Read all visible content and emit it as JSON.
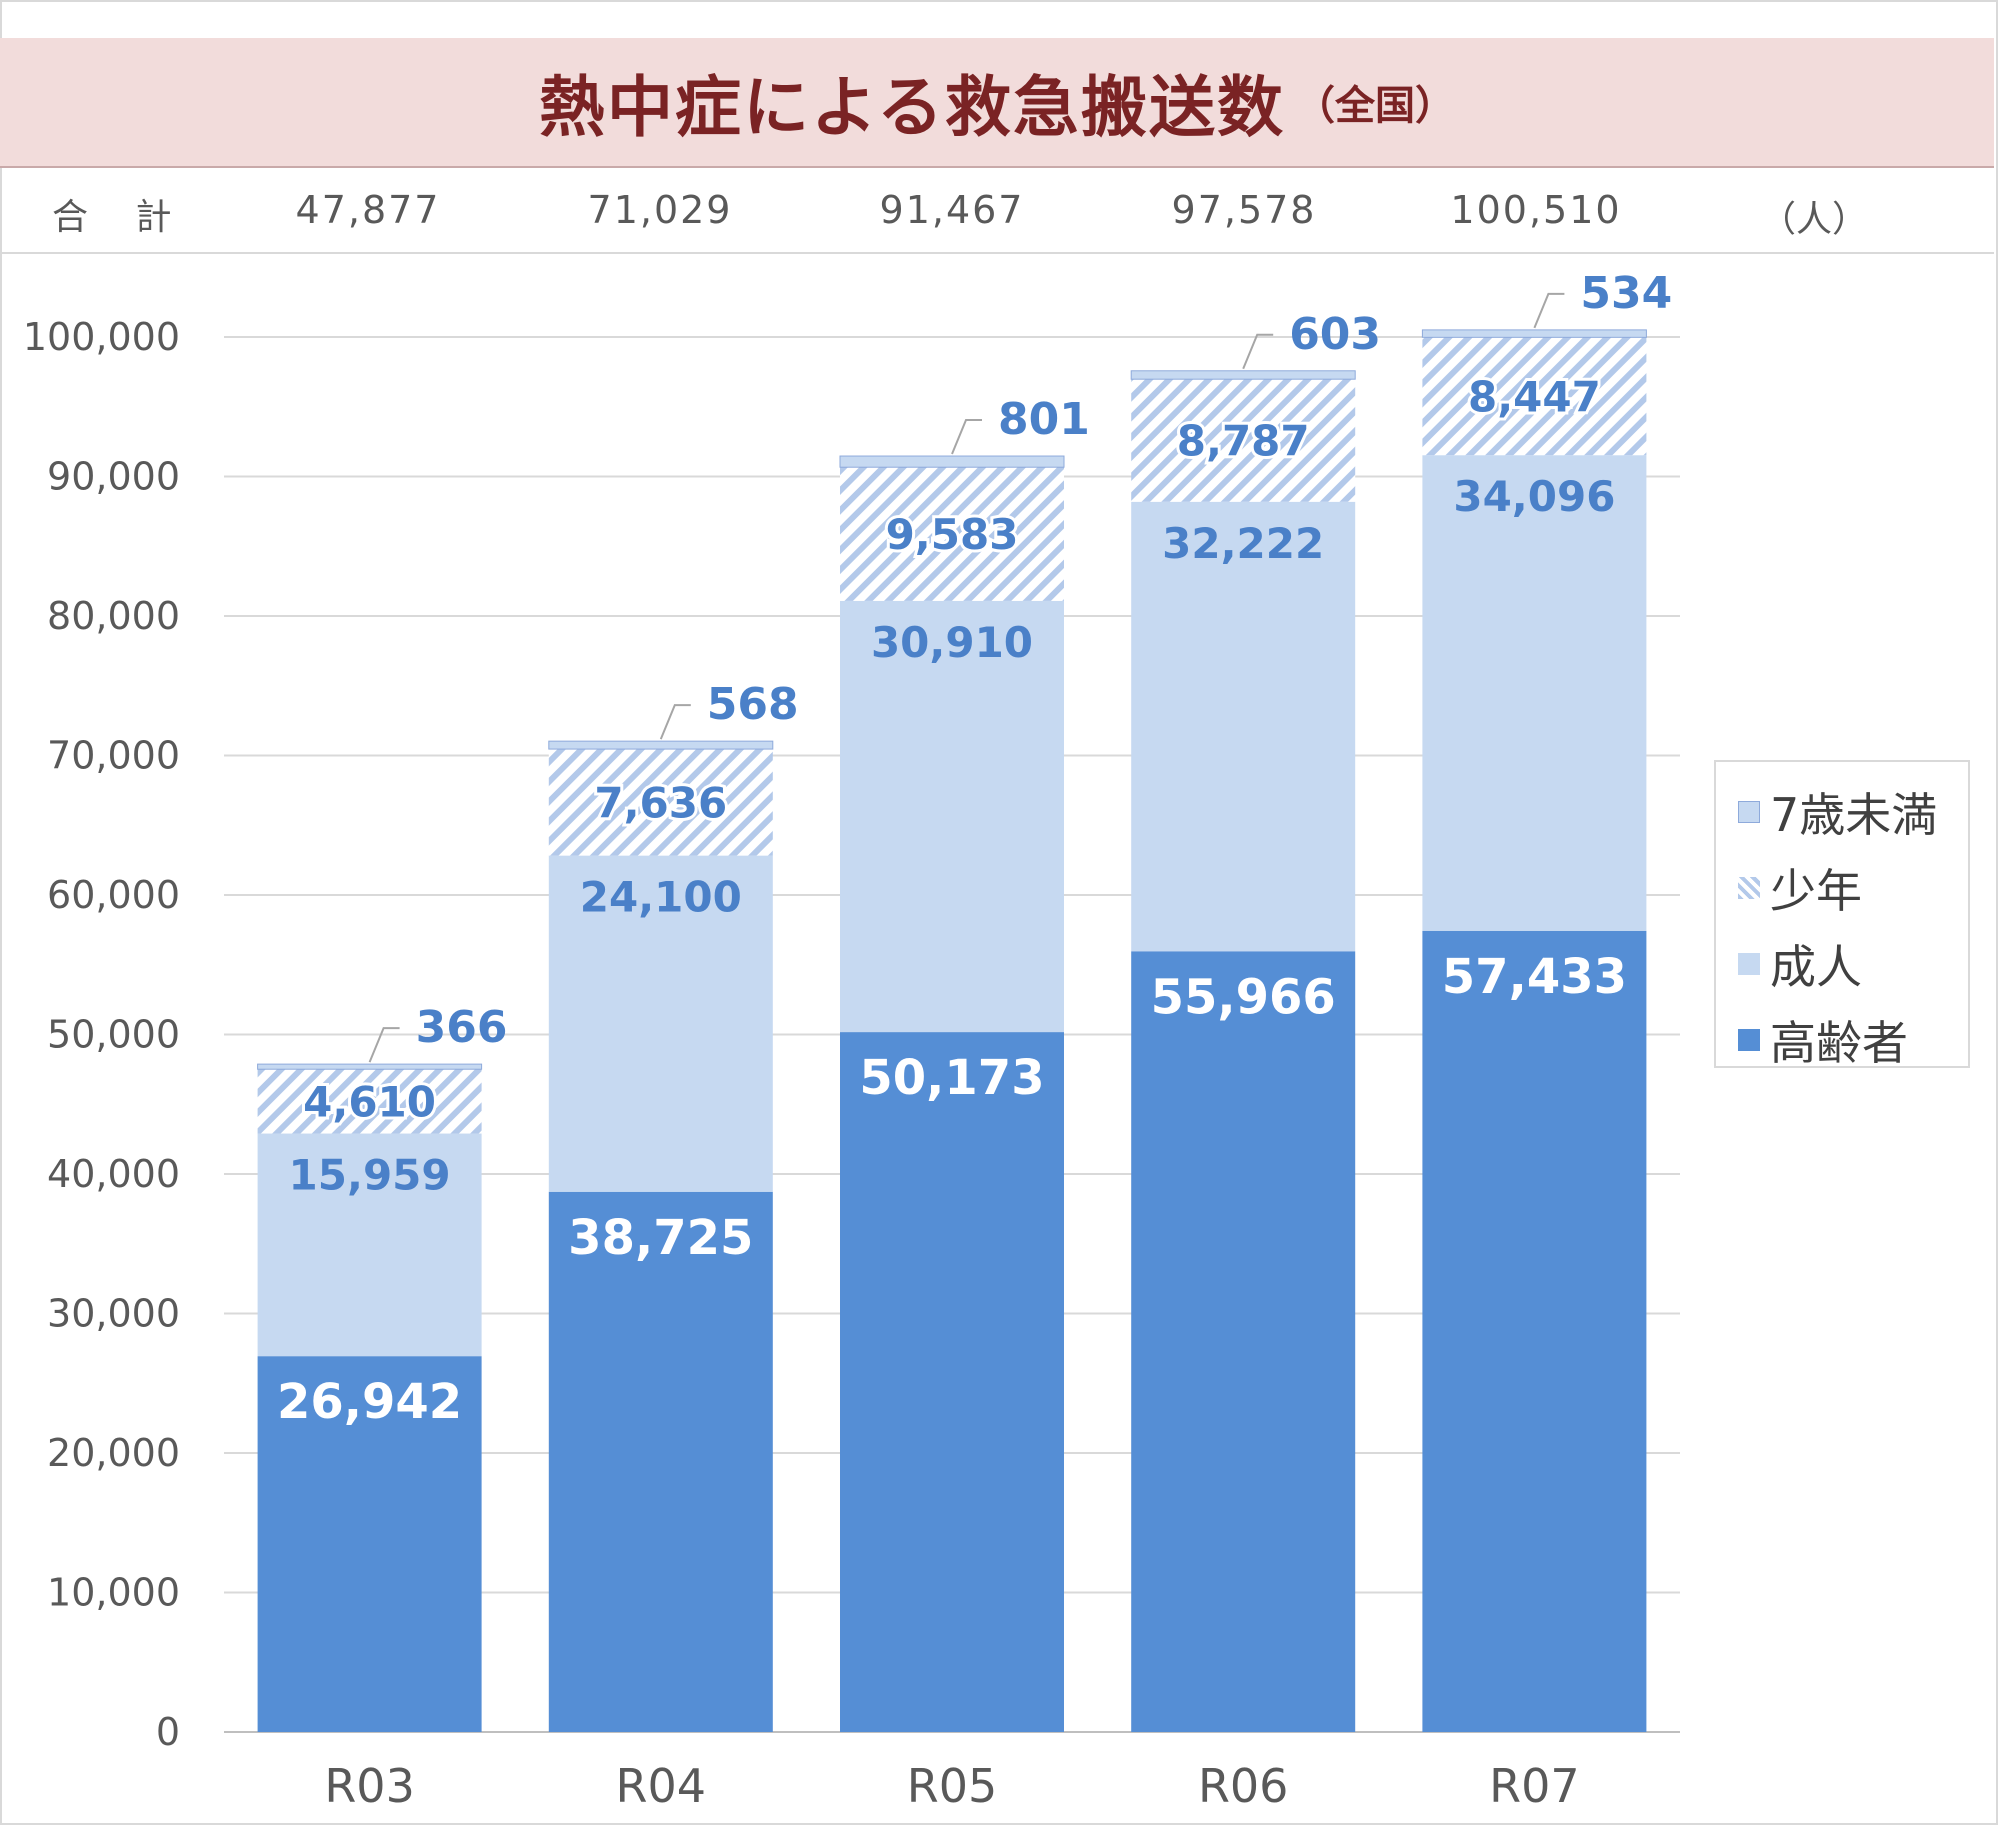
{
  "title": {
    "main": "熱中症による救急搬送数",
    "sub": "（全国）"
  },
  "totals": {
    "label": "合 計",
    "unit": "（人）",
    "values": [
      "47,877",
      "71,029",
      "91,467",
      "97,578",
      "100,510"
    ]
  },
  "colors": {
    "elderly": "#558ed5",
    "adult": "#c6d9f1",
    "youth_stripe": "#b3c9ea",
    "infant": "#c6d9f1",
    "grid": "#d9d9d9",
    "axis_text": "#595959",
    "label_blue": "#4a80c8",
    "label_white": "#ffffff"
  },
  "chart_data": {
    "type": "bar",
    "stacked": true,
    "categories": [
      "R03",
      "R04",
      "R05",
      "R06",
      "R07"
    ],
    "series": [
      {
        "name": "高齢者",
        "values": [
          26942,
          38725,
          50173,
          55966,
          57433
        ],
        "labels": [
          "26,942",
          "38,725",
          "50,173",
          "55,966",
          "57,433"
        ]
      },
      {
        "name": "成人",
        "values": [
          15959,
          24100,
          30910,
          32222,
          34096
        ],
        "labels": [
          "15,959",
          "24,100",
          "30,910",
          "32,222",
          "34,096"
        ]
      },
      {
        "name": "少年",
        "values": [
          4610,
          7636,
          9583,
          8787,
          8447
        ],
        "labels": [
          "4,610",
          "7,636",
          "9,583",
          "8,787",
          "8,447"
        ]
      },
      {
        "name": "7歳未満",
        "values": [
          366,
          568,
          801,
          603,
          534
        ],
        "labels": [
          "366",
          "568",
          "801",
          "603",
          "534"
        ]
      }
    ],
    "ylim": [
      0,
      100000
    ],
    "yticks": [
      0,
      10000,
      20000,
      30000,
      40000,
      50000,
      60000,
      70000,
      80000,
      90000,
      100000
    ],
    "ytick_labels": [
      "0",
      "10,000",
      "20,000",
      "30,000",
      "40,000",
      "50,000",
      "60,000",
      "70,000",
      "80,000",
      "90,000",
      "100,000"
    ],
    "grid": true,
    "legend_position": "right",
    "legend_order": [
      "7歳未満",
      "少年",
      "成人",
      "高齢者"
    ]
  }
}
